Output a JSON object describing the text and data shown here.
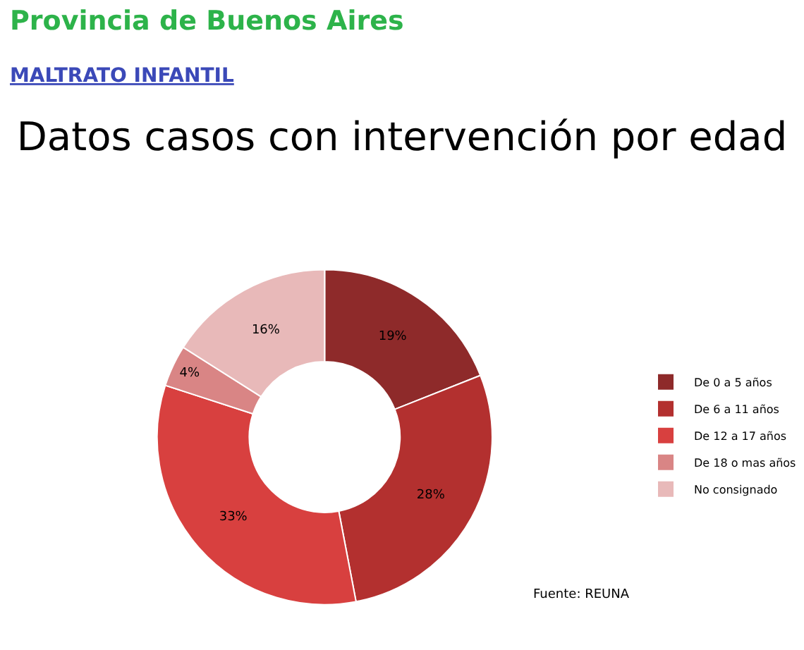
{
  "chart_data": {
    "type": "donut",
    "title": "Datos casos con intervención por edad",
    "annotations": [
      "Provincia de Buenos Aires",
      "MALTRATO INFANTIL",
      "Fuente: REUNA"
    ],
    "categories": [
      "De 0 a 5 años",
      "De 6 a 11 años",
      "De 12 a 17 años",
      "De 18 o mas años",
      "No consignado"
    ],
    "values": [
      19,
      28,
      33,
      4,
      16
    ],
    "colors": [
      "#8e2a2a",
      "#b3302f",
      "#d8403f",
      "#d98585",
      "#e8b9b9"
    ],
    "value_labels": [
      "19%",
      "28%",
      "33%",
      "4%",
      "16%"
    ],
    "legend": "right"
  }
}
